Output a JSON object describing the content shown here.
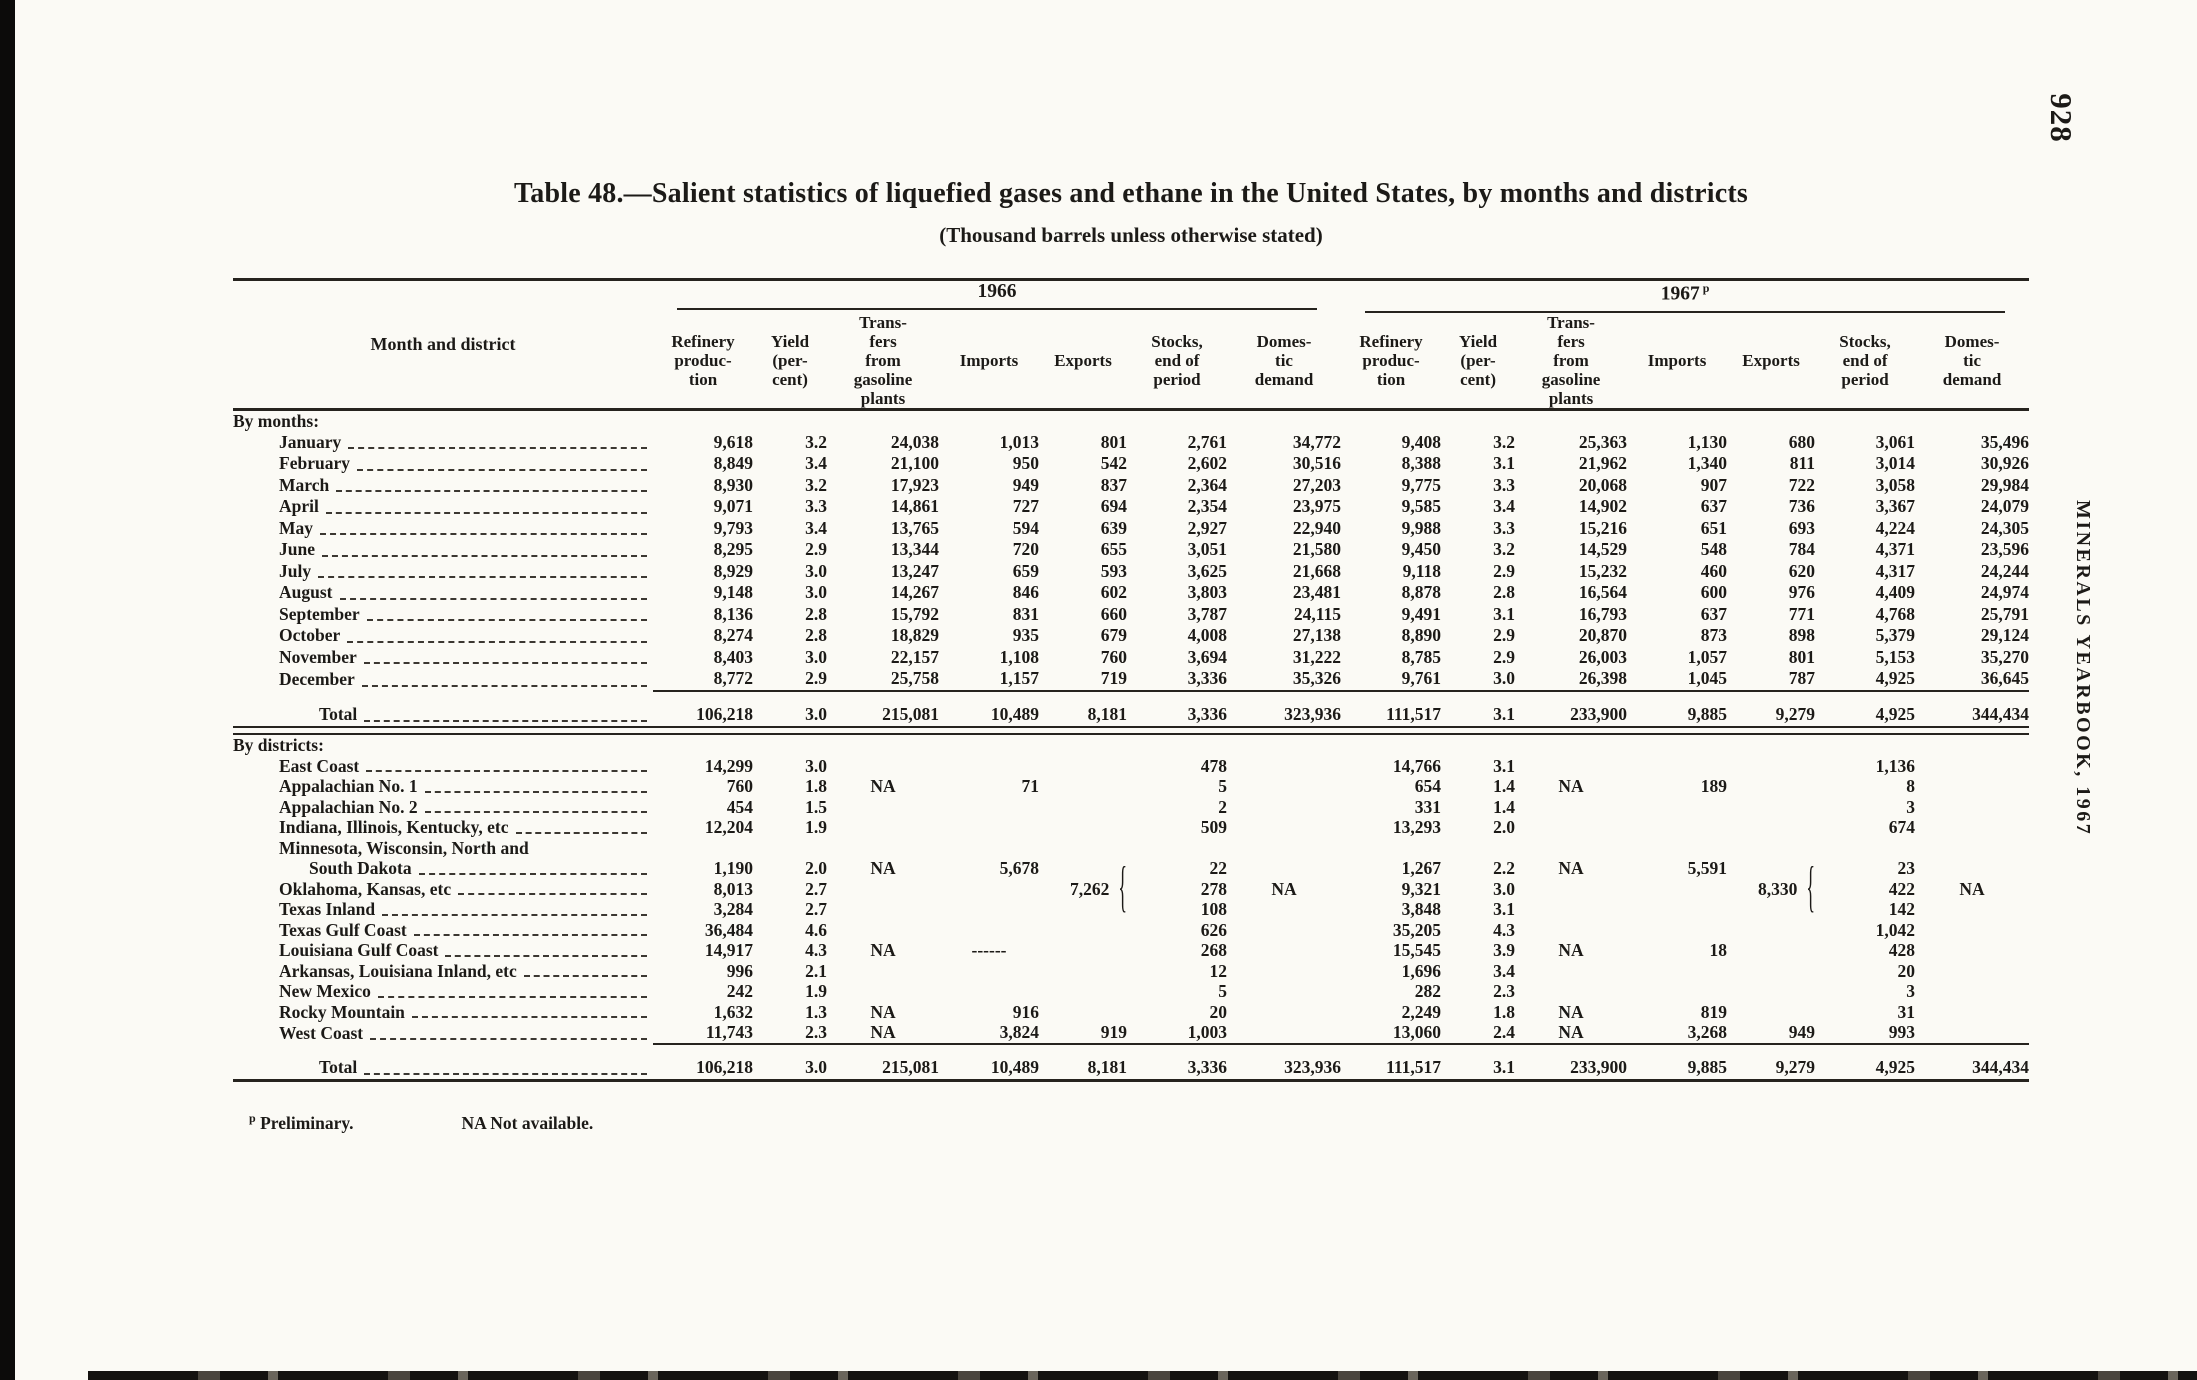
{
  "page": {
    "number": "928",
    "side_title": "MINERALS YEARBOOK, 1967",
    "title": "Table 48.—Salient statistics of liquefied gases and ethane in the United States, by months and districts",
    "subtitle": "(Thousand barrels unless otherwise stated)",
    "footnotes": [
      {
        "sup": "p",
        "text": "Preliminary."
      },
      {
        "sup": "",
        "text": "NA Not available."
      }
    ]
  },
  "table": {
    "row_header": "Month and district",
    "year_groups": [
      {
        "label": "1966",
        "sup": ""
      },
      {
        "label": "1967",
        "sup": "p"
      }
    ],
    "columns": [
      "Refinery\nproduc-\ntion",
      "Yield\n(per-\ncent)",
      "Trans-\nfers\nfrom\ngasoline\nplants",
      "Imports",
      "Exports",
      "Stocks,\nend of\nperiod",
      "Domes-\ntic\ndemand"
    ],
    "sections": [
      {
        "label": "By months:",
        "rows": [
          {
            "label": "January",
            "v1966": [
              "9,618",
              "3.2",
              "24,038",
              "1,013",
              "801",
              "2,761",
              "34,772"
            ],
            "v1967": [
              "9,408",
              "3.2",
              "25,363",
              "1,130",
              "680",
              "3,061",
              "35,496"
            ]
          },
          {
            "label": "February",
            "v1966": [
              "8,849",
              "3.4",
              "21,100",
              "950",
              "542",
              "2,602",
              "30,516"
            ],
            "v1967": [
              "8,388",
              "3.1",
              "21,962",
              "1,340",
              "811",
              "3,014",
              "30,926"
            ]
          },
          {
            "label": "March",
            "v1966": [
              "8,930",
              "3.2",
              "17,923",
              "949",
              "837",
              "2,364",
              "27,203"
            ],
            "v1967": [
              "9,775",
              "3.3",
              "20,068",
              "907",
              "722",
              "3,058",
              "29,984"
            ]
          },
          {
            "label": "April",
            "v1966": [
              "9,071",
              "3.3",
              "14,861",
              "727",
              "694",
              "2,354",
              "23,975"
            ],
            "v1967": [
              "9,585",
              "3.4",
              "14,902",
              "637",
              "736",
              "3,367",
              "24,079"
            ]
          },
          {
            "label": "May",
            "v1966": [
              "9,793",
              "3.4",
              "13,765",
              "594",
              "639",
              "2,927",
              "22,940"
            ],
            "v1967": [
              "9,988",
              "3.3",
              "15,216",
              "651",
              "693",
              "4,224",
              "24,305"
            ]
          },
          {
            "label": "June",
            "v1966": [
              "8,295",
              "2.9",
              "13,344",
              "720",
              "655",
              "3,051",
              "21,580"
            ],
            "v1967": [
              "9,450",
              "3.2",
              "14,529",
              "548",
              "784",
              "4,371",
              "23,596"
            ]
          },
          {
            "label": "July",
            "v1966": [
              "8,929",
              "3.0",
              "13,247",
              "659",
              "593",
              "3,625",
              "21,668"
            ],
            "v1967": [
              "9,118",
              "2.9",
              "15,232",
              "460",
              "620",
              "4,317",
              "24,244"
            ]
          },
          {
            "label": "August",
            "v1966": [
              "9,148",
              "3.0",
              "14,267",
              "846",
              "602",
              "3,803",
              "23,481"
            ],
            "v1967": [
              "8,878",
              "2.8",
              "16,564",
              "600",
              "976",
              "4,409",
              "24,974"
            ]
          },
          {
            "label": "September",
            "v1966": [
              "8,136",
              "2.8",
              "15,792",
              "831",
              "660",
              "3,787",
              "24,115"
            ],
            "v1967": [
              "9,491",
              "3.1",
              "16,793",
              "637",
              "771",
              "4,768",
              "25,791"
            ]
          },
          {
            "label": "October",
            "v1966": [
              "8,274",
              "2.8",
              "18,829",
              "935",
              "679",
              "4,008",
              "27,138"
            ],
            "v1967": [
              "8,890",
              "2.9",
              "20,870",
              "873",
              "898",
              "5,379",
              "29,124"
            ]
          },
          {
            "label": "November",
            "v1966": [
              "8,403",
              "3.0",
              "22,157",
              "1,108",
              "760",
              "3,694",
              "31,222"
            ],
            "v1967": [
              "8,785",
              "2.9",
              "26,003",
              "1,057",
              "801",
              "5,153",
              "35,270"
            ]
          },
          {
            "label": "December",
            "v1966": [
              "8,772",
              "2.9",
              "25,758",
              "1,157",
              "719",
              "3,336",
              "35,326"
            ],
            "v1967": [
              "9,761",
              "3.0",
              "26,398",
              "1,045",
              "787",
              "4,925",
              "36,645"
            ]
          }
        ],
        "total": {
          "label": "Total",
          "v1966": [
            "106,218",
            "3.0",
            "215,081",
            "10,489",
            "8,181",
            "3,336",
            "323,936"
          ],
          "v1967": [
            "111,517",
            "3.1",
            "233,900",
            "9,885",
            "9,279",
            "4,925",
            "344,434"
          ]
        }
      },
      {
        "label": "By districts:",
        "rows": [
          {
            "label": "East Coast",
            "v1966": [
              "14,299",
              "3.0",
              "",
              "",
              "",
              "478",
              ""
            ],
            "v1967": [
              "14,766",
              "3.1",
              "",
              "",
              "",
              "1,136",
              ""
            ]
          },
          {
            "label": "Appalachian No. 1",
            "v1966": [
              "760",
              "1.8",
              "NA",
              "71",
              "",
              "5",
              ""
            ],
            "v1967": [
              "654",
              "1.4",
              "NA",
              "189",
              "",
              "8",
              ""
            ]
          },
          {
            "label": "Appalachian No. 2",
            "v1966": [
              "454",
              "1.5",
              "",
              "",
              "",
              "2",
              ""
            ],
            "v1967": [
              "331",
              "1.4",
              "",
              "",
              "",
              "3",
              ""
            ]
          },
          {
            "label": "Indiana, Illinois, Kentucky, etc",
            "v1966": [
              "12,204",
              "1.9",
              "",
              "",
              "",
              "509",
              ""
            ],
            "v1967": [
              "13,293",
              "2.0",
              "",
              "",
              "",
              "674",
              ""
            ]
          },
          {
            "label": "Minnesota, Wisconsin, North and",
            "label2": "South Dakota",
            "v1966": [
              "1,190",
              "2.0",
              "NA",
              "5,678",
              "",
              "22",
              ""
            ],
            "v1967": [
              "1,267",
              "2.2",
              "NA",
              "5,591",
              "",
              "23",
              ""
            ]
          },
          {
            "label": "Oklahoma, Kansas, etc",
            "brace": true,
            "v1966": [
              "8,013",
              "2.7",
              "",
              "",
              "7,262",
              "278",
              "NA"
            ],
            "v1967": [
              "9,321",
              "3.0",
              "",
              "",
              "8,330",
              "422",
              "NA"
            ]
          },
          {
            "label": "Texas Inland",
            "v1966": [
              "3,284",
              "2.7",
              "",
              "",
              "",
              "108",
              ""
            ],
            "v1967": [
              "3,848",
              "3.1",
              "",
              "",
              "",
              "142",
              ""
            ]
          },
          {
            "label": "Texas Gulf Coast",
            "v1966": [
              "36,484",
              "4.6",
              "",
              "",
              "",
              "626",
              ""
            ],
            "v1967": [
              "35,205",
              "4.3",
              "",
              "",
              "",
              "1,042",
              ""
            ]
          },
          {
            "label": "Louisiana Gulf Coast",
            "v1966": [
              "14,917",
              "4.3",
              "NA",
              "------",
              "",
              "268",
              ""
            ],
            "v1967": [
              "15,545",
              "3.9",
              "NA",
              "18",
              "",
              "428",
              ""
            ]
          },
          {
            "label": "Arkansas, Louisiana Inland, etc",
            "v1966": [
              "996",
              "2.1",
              "",
              "",
              "",
              "12",
              ""
            ],
            "v1967": [
              "1,696",
              "3.4",
              "",
              "",
              "",
              "20",
              ""
            ]
          },
          {
            "label": "New Mexico",
            "v1966": [
              "242",
              "1.9",
              "",
              "",
              "",
              "5",
              ""
            ],
            "v1967": [
              "282",
              "2.3",
              "",
              "",
              "",
              "3",
              ""
            ]
          },
          {
            "label": "Rocky Mountain",
            "v1966": [
              "1,632",
              "1.3",
              "NA",
              "916",
              "",
              "20",
              ""
            ],
            "v1967": [
              "2,249",
              "1.8",
              "NA",
              "819",
              "",
              "31",
              ""
            ]
          },
          {
            "label": "West Coast",
            "v1966": [
              "11,743",
              "2.3",
              "NA",
              "3,824",
              "919",
              "1,003",
              ""
            ],
            "v1967": [
              "13,060",
              "2.4",
              "NA",
              "3,268",
              "949",
              "993",
              ""
            ]
          }
        ],
        "total": {
          "label": "Total",
          "v1966": [
            "106,218",
            "3.0",
            "215,081",
            "10,489",
            "8,181",
            "3,336",
            "323,936"
          ],
          "v1967": [
            "111,517",
            "3.1",
            "233,900",
            "9,885",
            "9,279",
            "4,925",
            "344,434"
          ]
        }
      }
    ]
  }
}
